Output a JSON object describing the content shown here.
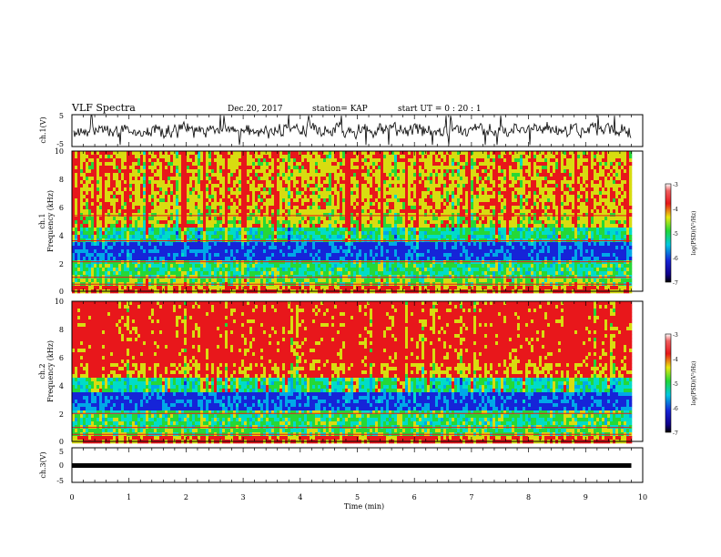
{
  "header": {
    "title": "VLF Spectra",
    "date": "Dec.20, 2017",
    "station": "station= KAP",
    "start": "start  UT =   0  : 20 : 1"
  },
  "chart_data": [
    {
      "id": "ch1_waveform",
      "type": "line",
      "ylabel": "ch.1(V)",
      "ylim": [
        -5,
        5
      ],
      "yticks": [
        "5",
        "-5"
      ],
      "xlim": [
        0,
        10
      ]
    },
    {
      "id": "ch1_spectrogram",
      "type": "heatmap",
      "ylabel_top": "ch.1",
      "ylabel": "Frequency (kHz)",
      "ylim": [
        0,
        10
      ],
      "yticks": [
        "10",
        "8",
        "6",
        "4",
        "2",
        "0"
      ],
      "xlim": [
        0,
        10
      ],
      "colorbar": {
        "label": "log(PSD)(V²/Hz)",
        "range": [
          -7,
          -3
        ],
        "ticks": [
          "-3",
          "-4",
          "-5",
          "-6",
          "-7"
        ]
      }
    },
    {
      "id": "ch2_spectrogram",
      "type": "heatmap",
      "ylabel_top": "ch.2",
      "ylabel": "Frequency (kHz)",
      "ylim": [
        0,
        10
      ],
      "yticks": [
        "10",
        "8",
        "6",
        "4",
        "2",
        "0"
      ],
      "xlim": [
        0,
        10
      ],
      "colorbar": {
        "label": "log(PSD)(V²/Hz)",
        "range": [
          -7,
          -3
        ],
        "ticks": [
          "-3",
          "-4",
          "-5",
          "-6",
          "-7"
        ]
      }
    },
    {
      "id": "ch3_waveform",
      "type": "line",
      "ylabel": "ch.3(V)",
      "ylim": [
        -5,
        5
      ],
      "yticks": [
        "5",
        "0",
        "-5"
      ],
      "level": -0.5,
      "xlim": [
        0,
        10
      ]
    }
  ],
  "xaxis": {
    "label": "Time (min)",
    "ticks": [
      "0",
      "1",
      "2",
      "3",
      "4",
      "5",
      "6",
      "7",
      "8",
      "9",
      "10"
    ],
    "data_end": 9.8
  },
  "colors": {
    "red": "#e8171b",
    "yellow": "#d8dc10",
    "green": "#25d837",
    "cyan": "#00dcc8",
    "blue": "#1624d8"
  }
}
